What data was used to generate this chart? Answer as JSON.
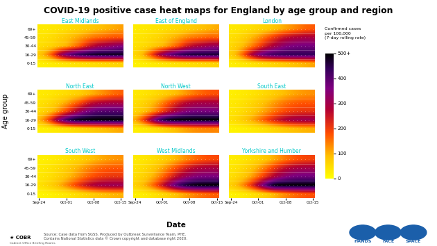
{
  "title": "COVID-19 positive case heat maps for England by age group and region",
  "regions": [
    "East Midlands",
    "East of England",
    "London",
    "North East",
    "North West",
    "South East",
    "South West",
    "West Midlands",
    "Yorkshire and Humber"
  ],
  "age_groups": [
    "60+",
    "45-59",
    "30-44",
    "16-29",
    "0-15"
  ],
  "date_ticks": [
    "Sep-24",
    "Oct-01",
    "Oct-08",
    "Oct-15"
  ],
  "n_dates": 22,
  "colorbar_label_line1": "Confirmed cases",
  "colorbar_label_line2": "per 100,000",
  "colorbar_label_line3": "(7-day rolling rate)",
  "colorbar_ticks": [
    0,
    100,
    200,
    300,
    400,
    500
  ],
  "colorbar_ticklabels": [
    "0",
    "100",
    "200",
    "300",
    "400",
    "500+"
  ],
  "vmax": 500,
  "xlabel": "Date",
  "ylabel": "Age group",
  "source_text": "Source: Case data from SGSS. Produced by Outbreak Surveillance Team, PHE.\nContains National Statistics data © Crown copyright and database right 2020.",
  "region_title_color": "#00c8c8",
  "background_color": "#ffffff",
  "title_fontsize": 9,
  "cmap_colors": [
    [
      0.0,
      [
        1.0,
        1.0,
        0.0
      ]
    ],
    [
      0.18,
      [
        1.0,
        0.75,
        0.0
      ]
    ],
    [
      0.36,
      [
        1.0,
        0.3,
        0.0
      ]
    ],
    [
      0.55,
      [
        0.7,
        0.0,
        0.2
      ]
    ],
    [
      0.72,
      [
        0.5,
        0.0,
        0.5
      ]
    ],
    [
      0.88,
      [
        0.2,
        0.0,
        0.35
      ]
    ],
    [
      1.0,
      [
        0.0,
        0.0,
        0.0
      ]
    ]
  ],
  "heatmap_data": {
    "East Midlands": [
      [
        30,
        30,
        30,
        35,
        35,
        40,
        40,
        45,
        50,
        55,
        60,
        65,
        70,
        75,
        80,
        85,
        90,
        95,
        100,
        105,
        110,
        115
      ],
      [
        40,
        40,
        45,
        50,
        55,
        65,
        70,
        80,
        90,
        100,
        110,
        120,
        130,
        140,
        150,
        155,
        160,
        165,
        170,
        175,
        175,
        170
      ],
      [
        45,
        50,
        55,
        60,
        70,
        80,
        90,
        100,
        120,
        140,
        160,
        190,
        220,
        250,
        270,
        290,
        300,
        310,
        320,
        330,
        340,
        350
      ],
      [
        80,
        100,
        130,
        170,
        220,
        280,
        330,
        370,
        400,
        420,
        440,
        450,
        460,
        470,
        475,
        480,
        480,
        480,
        480,
        480,
        480,
        480
      ],
      [
        20,
        22,
        24,
        26,
        28,
        30,
        32,
        34,
        36,
        38,
        40,
        42,
        44,
        46,
        48,
        50,
        52,
        54,
        56,
        58,
        60,
        62
      ]
    ],
    "East of England": [
      [
        25,
        28,
        30,
        32,
        35,
        38,
        40,
        42,
        45,
        48,
        50,
        55,
        60,
        65,
        70,
        75,
        80,
        85,
        90,
        95,
        100,
        105
      ],
      [
        35,
        38,
        40,
        45,
        50,
        55,
        60,
        70,
        80,
        90,
        100,
        110,
        120,
        130,
        140,
        145,
        150,
        155,
        160,
        165,
        165,
        160
      ],
      [
        40,
        45,
        50,
        55,
        65,
        75,
        85,
        95,
        110,
        130,
        150,
        170,
        200,
        230,
        250,
        270,
        280,
        290,
        300,
        310,
        315,
        320
      ],
      [
        60,
        75,
        100,
        140,
        180,
        230,
        280,
        320,
        360,
        390,
        410,
        430,
        445,
        455,
        460,
        465,
        465,
        465,
        465,
        465,
        465,
        465
      ],
      [
        18,
        20,
        22,
        24,
        26,
        28,
        30,
        32,
        34,
        36,
        38,
        40,
        42,
        44,
        46,
        48,
        50,
        52,
        54,
        56,
        58,
        60
      ]
    ],
    "London": [
      [
        30,
        32,
        35,
        38,
        40,
        45,
        50,
        55,
        60,
        65,
        70,
        80,
        90,
        100,
        110,
        120,
        130,
        140,
        150,
        160,
        165,
        170
      ],
      [
        45,
        50,
        55,
        65,
        75,
        90,
        105,
        120,
        140,
        160,
        180,
        200,
        220,
        240,
        255,
        265,
        275,
        280,
        285,
        290,
        290,
        285
      ],
      [
        55,
        65,
        75,
        90,
        110,
        130,
        155,
        180,
        210,
        240,
        265,
        290,
        310,
        330,
        345,
        355,
        360,
        365,
        368,
        370,
        370,
        368
      ],
      [
        70,
        90,
        120,
        160,
        210,
        265,
        310,
        350,
        380,
        400,
        415,
        425,
        430,
        435,
        438,
        440,
        440,
        440,
        440,
        440,
        440,
        440
      ],
      [
        22,
        25,
        28,
        30,
        33,
        36,
        40,
        44,
        48,
        52,
        56,
        60,
        65,
        70,
        75,
        80,
        85,
        90,
        95,
        100,
        105,
        110
      ]
    ],
    "North East": [
      [
        28,
        30,
        32,
        35,
        38,
        42,
        46,
        50,
        55,
        60,
        65,
        75,
        85,
        95,
        105,
        115,
        125,
        135,
        145,
        155,
        160,
        165
      ],
      [
        40,
        45,
        50,
        58,
        68,
        80,
        95,
        110,
        130,
        150,
        170,
        195,
        220,
        245,
        260,
        270,
        278,
        283,
        286,
        288,
        288,
        285
      ],
      [
        50,
        60,
        70,
        85,
        105,
        130,
        160,
        190,
        225,
        260,
        295,
        325,
        350,
        370,
        385,
        395,
        400,
        402,
        403,
        403,
        403,
        402
      ],
      [
        100,
        130,
        170,
        220,
        280,
        340,
        390,
        430,
        460,
        480,
        490,
        495,
        497,
        498,
        499,
        499,
        499,
        499,
        499,
        499,
        499,
        499
      ],
      [
        20,
        22,
        24,
        27,
        30,
        33,
        37,
        41,
        45,
        50,
        55,
        60,
        65,
        70,
        75,
        80,
        85,
        90,
        95,
        100,
        105,
        108
      ]
    ],
    "North West": [
      [
        30,
        33,
        36,
        40,
        44,
        50,
        56,
        63,
        70,
        78,
        86,
        96,
        108,
        120,
        132,
        143,
        153,
        161,
        168,
        173,
        176,
        177
      ],
      [
        45,
        52,
        60,
        70,
        83,
        98,
        116,
        137,
        160,
        183,
        206,
        228,
        248,
        264,
        276,
        284,
        289,
        292,
        293,
        293,
        292,
        290
      ],
      [
        55,
        65,
        78,
        93,
        112,
        135,
        162,
        192,
        224,
        256,
        285,
        310,
        330,
        345,
        356,
        362,
        365,
        366,
        366,
        366,
        365,
        363
      ],
      [
        110,
        145,
        190,
        245,
        305,
        365,
        415,
        453,
        478,
        492,
        498,
        500,
        500,
        500,
        500,
        500,
        500,
        500,
        500,
        500,
        500,
        500
      ],
      [
        22,
        25,
        29,
        33,
        38,
        44,
        51,
        59,
        68,
        77,
        86,
        95,
        104,
        112,
        119,
        125,
        129,
        132,
        134,
        135,
        135,
        134
      ]
    ],
    "South East": [
      [
        22,
        24,
        26,
        29,
        32,
        36,
        40,
        45,
        50,
        56,
        62,
        69,
        77,
        85,
        93,
        100,
        107,
        113,
        118,
        122,
        125,
        126
      ],
      [
        30,
        33,
        37,
        42,
        48,
        55,
        63,
        72,
        82,
        93,
        104,
        116,
        128,
        139,
        149,
        157,
        163,
        168,
        171,
        173,
        173,
        172
      ],
      [
        35,
        39,
        44,
        51,
        59,
        68,
        79,
        91,
        104,
        118,
        132,
        147,
        161,
        174,
        185,
        193,
        199,
        204,
        207,
        209,
        209,
        208
      ],
      [
        45,
        52,
        61,
        72,
        85,
        101,
        119,
        139,
        161,
        184,
        207,
        229,
        250,
        268,
        283,
        294,
        301,
        306,
        309,
        311,
        311,
        310
      ],
      [
        15,
        17,
        19,
        22,
        25,
        28,
        32,
        36,
        41,
        46,
        52,
        58,
        64,
        70,
        76,
        82,
        87,
        91,
        95,
        98,
        100,
        101
      ]
    ],
    "South West": [
      [
        20,
        22,
        24,
        27,
        30,
        34,
        38,
        43,
        48,
        54,
        60,
        68,
        76,
        84,
        92,
        99,
        106,
        112,
        117,
        121,
        124,
        125
      ],
      [
        28,
        31,
        35,
        40,
        46,
        53,
        61,
        70,
        80,
        91,
        102,
        114,
        126,
        137,
        147,
        155,
        161,
        166,
        169,
        171,
        171,
        170
      ],
      [
        32,
        36,
        41,
        47,
        55,
        64,
        74,
        86,
        99,
        113,
        128,
        143,
        158,
        172,
        183,
        192,
        198,
        203,
        206,
        208,
        208,
        207
      ],
      [
        42,
        49,
        58,
        69,
        82,
        98,
        117,
        138,
        161,
        185,
        209,
        233,
        255,
        274,
        289,
        300,
        307,
        312,
        315,
        317,
        317,
        316
      ],
      [
        14,
        16,
        18,
        21,
        24,
        27,
        31,
        35,
        40,
        45,
        51,
        57,
        63,
        69,
        75,
        81,
        86,
        90,
        94,
        97,
        99,
        100
      ]
    ],
    "West Midlands": [
      [
        28,
        31,
        34,
        38,
        43,
        49,
        56,
        63,
        72,
        81,
        91,
        103,
        116,
        129,
        141,
        152,
        162,
        170,
        177,
        182,
        185,
        186
      ],
      [
        38,
        43,
        49,
        57,
        67,
        79,
        93,
        109,
        128,
        148,
        169,
        191,
        213,
        233,
        251,
        265,
        275,
        282,
        287,
        290,
        290,
        289
      ],
      [
        48,
        55,
        64,
        76,
        91,
        109,
        131,
        156,
        184,
        213,
        242,
        270,
        295,
        316,
        333,
        346,
        354,
        359,
        362,
        363,
        363,
        362
      ],
      [
        65,
        78,
        95,
        116,
        142,
        174,
        211,
        252,
        296,
        340,
        381,
        417,
        447,
        468,
        482,
        491,
        496,
        499,
        500,
        500,
        500,
        500
      ],
      [
        20,
        23,
        26,
        30,
        35,
        41,
        47,
        55,
        63,
        72,
        82,
        93,
        104,
        115,
        126,
        136,
        144,
        151,
        157,
        161,
        164,
        165
      ]
    ],
    "Yorkshire and Humber": [
      [
        25,
        28,
        31,
        35,
        40,
        46,
        53,
        61,
        70,
        80,
        91,
        104,
        118,
        132,
        145,
        157,
        168,
        177,
        184,
        189,
        192,
        193
      ],
      [
        35,
        40,
        46,
        54,
        64,
        76,
        91,
        108,
        128,
        150,
        173,
        197,
        220,
        241,
        259,
        273,
        283,
        290,
        295,
        298,
        299,
        298
      ],
      [
        45,
        52,
        62,
        74,
        89,
        108,
        131,
        157,
        186,
        217,
        248,
        278,
        304,
        326,
        343,
        356,
        365,
        370,
        373,
        375,
        375,
        374
      ],
      [
        70,
        85,
        105,
        131,
        163,
        202,
        248,
        299,
        355,
        408,
        453,
        488,
        499,
        500,
        500,
        500,
        500,
        500,
        500,
        500,
        500,
        500
      ],
      [
        18,
        21,
        24,
        28,
        33,
        39,
        46,
        54,
        63,
        73,
        84,
        96,
        109,
        122,
        134,
        145,
        154,
        162,
        168,
        173,
        176,
        177
      ]
    ]
  }
}
